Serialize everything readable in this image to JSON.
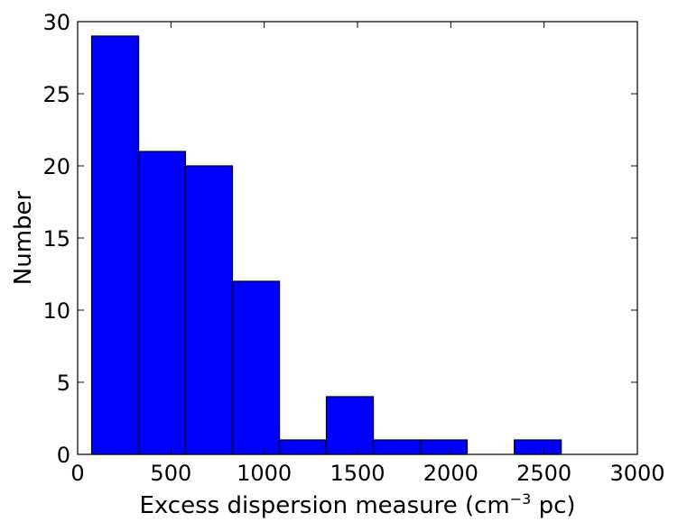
{
  "chart_data": {
    "type": "bar",
    "subtype": "histogram",
    "xlabel": {
      "main": "Excess dispersion measure (cm",
      "sup": "−3",
      "tail": " pc)"
    },
    "ylabel": "Number",
    "xlim": [
      0,
      3000
    ],
    "ylim": [
      0,
      30
    ],
    "xticks": [
      0,
      500,
      1000,
      1500,
      2000,
      2500,
      3000
    ],
    "yticks": [
      0,
      5,
      10,
      15,
      20,
      25,
      30
    ],
    "bins": [
      {
        "x0": 75,
        "x1": 327,
        "count": 29
      },
      {
        "x0": 327,
        "x1": 578,
        "count": 21
      },
      {
        "x0": 578,
        "x1": 830,
        "count": 20
      },
      {
        "x0": 830,
        "x1": 1082,
        "count": 12
      },
      {
        "x0": 1082,
        "x1": 1333,
        "count": 1
      },
      {
        "x0": 1333,
        "x1": 1585,
        "count": 4
      },
      {
        "x0": 1585,
        "x1": 1837,
        "count": 1
      },
      {
        "x0": 1837,
        "x1": 2088,
        "count": 1
      },
      {
        "x0": 2088,
        "x1": 2340,
        "count": 0
      },
      {
        "x0": 2340,
        "x1": 2592,
        "count": 1
      }
    ],
    "bar_color": "#0000ff",
    "edge_color": "#000000",
    "grid": false,
    "legend": "none"
  }
}
